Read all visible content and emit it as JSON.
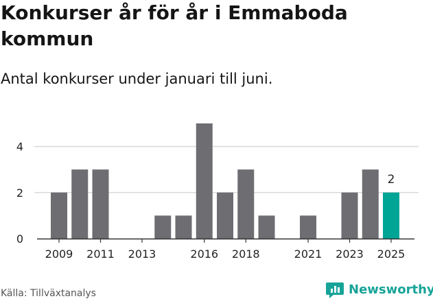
{
  "title": "Konkurser år för år i Emmaboda kommun",
  "subtitle": "Antal konkurser under januari till juni.",
  "source": "Källa: Tillväxtanalys",
  "logo": {
    "text": "Newsworthy",
    "icon": "newsworthy-logo-icon"
  },
  "colors": {
    "bar": "#6e6d72",
    "highlight": "#00a596",
    "grid": "#d9d9d9",
    "axis": "#333333",
    "brand": "#17a398"
  },
  "chart_data": {
    "type": "bar",
    "categories": [
      "2009",
      "2010",
      "2011",
      "2012",
      "2013",
      "2014",
      "2015",
      "2016",
      "2017",
      "2018",
      "2019",
      "2020",
      "2021",
      "2022",
      "2023",
      "2024",
      "2025"
    ],
    "values": [
      2,
      3,
      3,
      0,
      0,
      1,
      1,
      5,
      2,
      3,
      1,
      0,
      1,
      0,
      2,
      3,
      2
    ],
    "highlight_category": "2025",
    "data_labels": [
      {
        "category": "2025",
        "label": "2"
      }
    ],
    "x_tick_labels": [
      "2009",
      "2011",
      "2013",
      "2016",
      "2018",
      "2021",
      "2023",
      "2025"
    ],
    "y_ticks": [
      0,
      2,
      4
    ],
    "ylim": [
      0,
      5
    ],
    "grid": true
  }
}
